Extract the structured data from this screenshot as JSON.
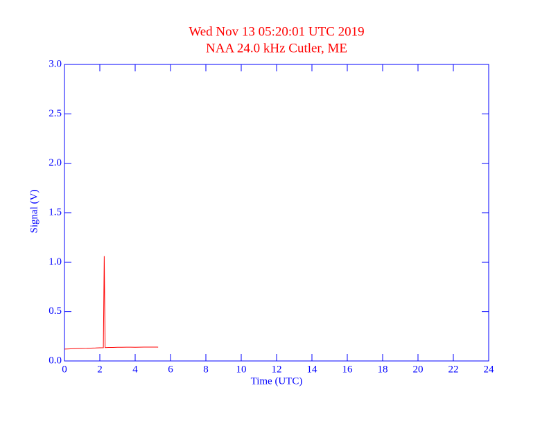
{
  "chart_data": {
    "type": "line",
    "title": "Wed Nov 13 05:20:01 UTC 2019",
    "subtitle": "NAA 24.0 kHz Cutler, ME",
    "x_label": "Time (UTC)",
    "y_label": "Signal (V)",
    "x": [
      0,
      0.25,
      0.5,
      0.75,
      1,
      1.25,
      1.5,
      1.75,
      2,
      2.2,
      2.25,
      2.3,
      2.5,
      2.75,
      3,
      3.25,
      3.5,
      3.75,
      4,
      4.25,
      4.5,
      4.75,
      5,
      5.25,
      5.3
    ],
    "series": [
      {
        "name": "Signal",
        "color": "#ff0000",
        "values": [
          0.12,
          0.122,
          0.124,
          0.126,
          0.127,
          0.128,
          0.13,
          0.131,
          0.133,
          0.134,
          1.06,
          0.135,
          0.137,
          0.137,
          0.138,
          0.138,
          0.139,
          0.139,
          0.138,
          0.139,
          0.14,
          0.14,
          0.14,
          0.14,
          0.139
        ]
      }
    ],
    "xlim": [
      0,
      24
    ],
    "xticks": [
      0,
      2,
      4,
      6,
      8,
      10,
      12,
      14,
      16,
      18,
      20,
      22,
      24
    ],
    "ylim": [
      0,
      3
    ],
    "yticks": [
      {
        "value": 0,
        "label": "0.0"
      },
      0.5,
      {
        "value": 1,
        "label": "1.0"
      },
      1.5,
      {
        "value": 2,
        "label": "2.0"
      },
      2.5,
      {
        "value": 3,
        "label": "3.0"
      }
    ],
    "axis_color": "#0000ff",
    "title_color": "#ff0000"
  }
}
